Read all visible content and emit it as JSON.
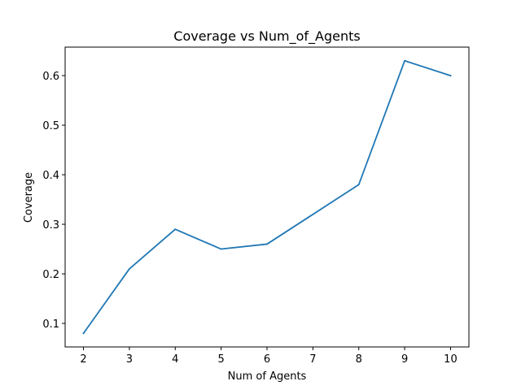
{
  "chart_data": {
    "type": "line",
    "title": "Coverage vs Num_of_Agents",
    "xlabel": "Num of Agents",
    "ylabel": "Coverage",
    "x": [
      2,
      3,
      4,
      5,
      6,
      7,
      8,
      9,
      10
    ],
    "series": [
      {
        "values": [
          0.08,
          0.21,
          0.29,
          0.25,
          0.26,
          0.32,
          0.38,
          0.63,
          0.6
        ],
        "color": "#1f77b4"
      }
    ],
    "xlim": [
      1.6,
      10.4
    ],
    "ylim": [
      0.0525,
      0.6575
    ],
    "xticks": [
      "2",
      "3",
      "4",
      "5",
      "6",
      "7",
      "8",
      "9",
      "10"
    ],
    "yticks": [
      "0.1",
      "0.2",
      "0.3",
      "0.4",
      "0.5",
      "0.6"
    ],
    "grid": false,
    "legend": "none"
  }
}
